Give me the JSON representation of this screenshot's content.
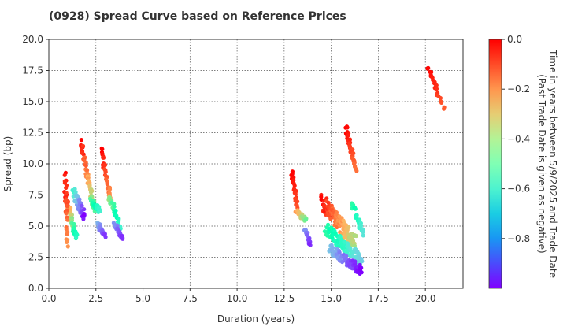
{
  "chart_data": {
    "type": "scatter",
    "title": "(0928)   Spread Curve based on Reference Prices",
    "xlabel": "Duration (years)",
    "ylabel": "Spread (bp)",
    "xlim": [
      0,
      22
    ],
    "ylim": [
      0,
      20
    ],
    "x_ticks": [
      0,
      2.5,
      5,
      7.5,
      10,
      12.5,
      15,
      17.5,
      20
    ],
    "x_tick_labels": [
      "0.0",
      "2.5",
      "5.0",
      "7.5",
      "10.0",
      "12.5",
      "15.0",
      "17.5",
      "20.0"
    ],
    "y_ticks": [
      0,
      2.5,
      5,
      7.5,
      10,
      12.5,
      15,
      17.5,
      20
    ],
    "y_tick_labels": [
      "0.0",
      "2.5",
      "5.0",
      "7.5",
      "10.0",
      "12.5",
      "15.0",
      "17.5",
      "20.0"
    ],
    "grid": true,
    "colorbar": {
      "label_line1": "Time in years between 5/9/2025 and Trade Date",
      "label_line2": "(Past Trade Date is given as negative)",
      "range": [
        -1.0,
        0.0
      ],
      "ticks": [
        0.0,
        -0.2,
        -0.4,
        -0.6,
        -0.8
      ],
      "tick_labels": [
        "0.0",
        "−0.2",
        "−0.4",
        "−0.6",
        "−0.8"
      ],
      "colormap": "rainbow"
    },
    "clusters": [
      {
        "x_start": 0.85,
        "x_end": 1.45,
        "y_start": 7.5,
        "y_end": 4.2,
        "c_start": 0.0,
        "c_end": -0.55,
        "jitter": 0.9,
        "count": 70
      },
      {
        "x_start": 0.85,
        "x_end": 1.0,
        "y_start": 9.4,
        "y_end": 3.3,
        "c_start": -0.02,
        "c_end": -0.2,
        "jitter": 0.5,
        "count": 25
      },
      {
        "x_start": 1.3,
        "x_end": 1.9,
        "y_start": 7.8,
        "y_end": 5.8,
        "c_start": -0.6,
        "c_end": -1.0,
        "jitter": 0.9,
        "count": 45
      },
      {
        "x_start": 1.7,
        "x_end": 2.4,
        "y_start": 11.7,
        "y_end": 6.4,
        "c_start": 0.0,
        "c_end": -0.4,
        "jitter": 0.6,
        "count": 60
      },
      {
        "x_start": 2.2,
        "x_end": 2.7,
        "y_start": 7.0,
        "y_end": 6.3,
        "c_start": -0.4,
        "c_end": -0.6,
        "jitter": 0.5,
        "count": 25
      },
      {
        "x_start": 2.6,
        "x_end": 3.0,
        "y_start": 5.2,
        "y_end": 4.2,
        "c_start": -0.75,
        "c_end": -0.95,
        "jitter": 0.4,
        "count": 25
      },
      {
        "x_start": 2.8,
        "x_end": 3.3,
        "y_start": 11.1,
        "y_end": 7.0,
        "c_start": 0.0,
        "c_end": -0.2,
        "jitter": 0.5,
        "count": 40
      },
      {
        "x_start": 3.2,
        "x_end": 3.8,
        "y_start": 7.4,
        "y_end": 4.8,
        "c_start": -0.35,
        "c_end": -0.6,
        "jitter": 0.6,
        "count": 30
      },
      {
        "x_start": 3.5,
        "x_end": 3.9,
        "y_start": 5.2,
        "y_end": 4.0,
        "c_start": -0.8,
        "c_end": -0.95,
        "jitter": 0.4,
        "count": 25
      },
      {
        "x_start": 12.9,
        "x_end": 13.2,
        "y_start": 9.4,
        "y_end": 6.5,
        "c_start": 0.0,
        "c_end": -0.1,
        "jitter": 0.3,
        "count": 25
      },
      {
        "x_start": 13.1,
        "x_end": 13.7,
        "y_start": 6.2,
        "y_end": 5.5,
        "c_start": -0.2,
        "c_end": -0.4,
        "jitter": 0.4,
        "count": 25
      },
      {
        "x_start": 13.6,
        "x_end": 13.9,
        "y_start": 4.8,
        "y_end": 3.5,
        "c_start": -0.8,
        "c_end": -0.95,
        "jitter": 0.3,
        "count": 20
      },
      {
        "x_start": 14.5,
        "x_end": 16.3,
        "y_start": 7.0,
        "y_end": 3.6,
        "c_start": -0.02,
        "c_end": -0.35,
        "jitter": 1.3,
        "count": 110
      },
      {
        "x_start": 14.7,
        "x_end": 16.6,
        "y_start": 4.8,
        "y_end": 2.2,
        "c_start": -0.45,
        "c_end": -0.7,
        "jitter": 1.0,
        "count": 90
      },
      {
        "x_start": 14.9,
        "x_end": 16.6,
        "y_start": 3.2,
        "y_end": 1.4,
        "c_start": -0.72,
        "c_end": -1.0,
        "jitter": 0.8,
        "count": 90
      },
      {
        "x_start": 15.8,
        "x_end": 16.3,
        "y_start": 12.9,
        "y_end": 9.5,
        "c_start": 0.0,
        "c_end": -0.15,
        "jitter": 0.4,
        "count": 40
      },
      {
        "x_start": 16.1,
        "x_end": 16.7,
        "y_start": 6.8,
        "y_end": 4.4,
        "c_start": -0.45,
        "c_end": -0.65,
        "jitter": 0.6,
        "count": 25
      },
      {
        "x_start": 20.1,
        "x_end": 20.6,
        "y_start": 17.8,
        "y_end": 16.2,
        "c_start": 0.0,
        "c_end": -0.05,
        "jitter": 0.3,
        "count": 15
      },
      {
        "x_start": 20.5,
        "x_end": 21.0,
        "y_start": 16.0,
        "y_end": 14.5,
        "c_start": -0.05,
        "c_end": -0.12,
        "jitter": 0.4,
        "count": 10
      }
    ]
  }
}
